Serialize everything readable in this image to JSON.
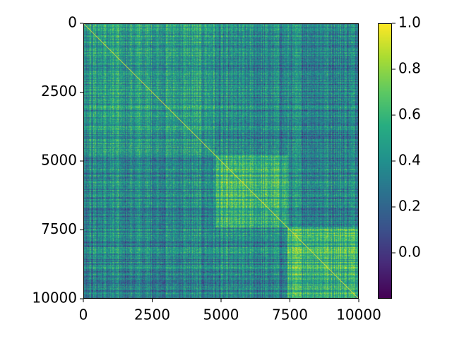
{
  "chart_data": {
    "type": "heatmap",
    "title": "",
    "xlabel": "",
    "ylabel": "",
    "xlim": [
      0,
      10000
    ],
    "ylim": [
      10000,
      0
    ],
    "x_ticks": [
      0,
      2500,
      5000,
      7500,
      10000
    ],
    "y_ticks": [
      0,
      2500,
      5000,
      7500,
      10000
    ],
    "x_tick_labels": [
      "0",
      "2500",
      "5000",
      "7500",
      "10000"
    ],
    "y_tick_labels": [
      "0",
      "2500",
      "5000",
      "7500",
      "10000"
    ],
    "colormap": "viridis",
    "colorbar": {
      "min": -0.2,
      "max": 1.0,
      "ticks": [
        0.0,
        0.2,
        0.4,
        0.6,
        0.8,
        1.0
      ],
      "tick_labels": [
        "0.0",
        "0.2",
        "0.4",
        "0.6",
        "0.8",
        "1.0"
      ]
    },
    "diagonal_value": 1.0,
    "blocks": [
      {
        "range": [
          0,
          4800
        ],
        "mean_value": 0.45
      },
      {
        "range": [
          4800,
          7400
        ],
        "mean_value": 0.55
      },
      {
        "range": [
          7400,
          10000
        ],
        "mean_value": 0.6
      }
    ],
    "off_block_mean_value": 0.35,
    "grid": false
  }
}
